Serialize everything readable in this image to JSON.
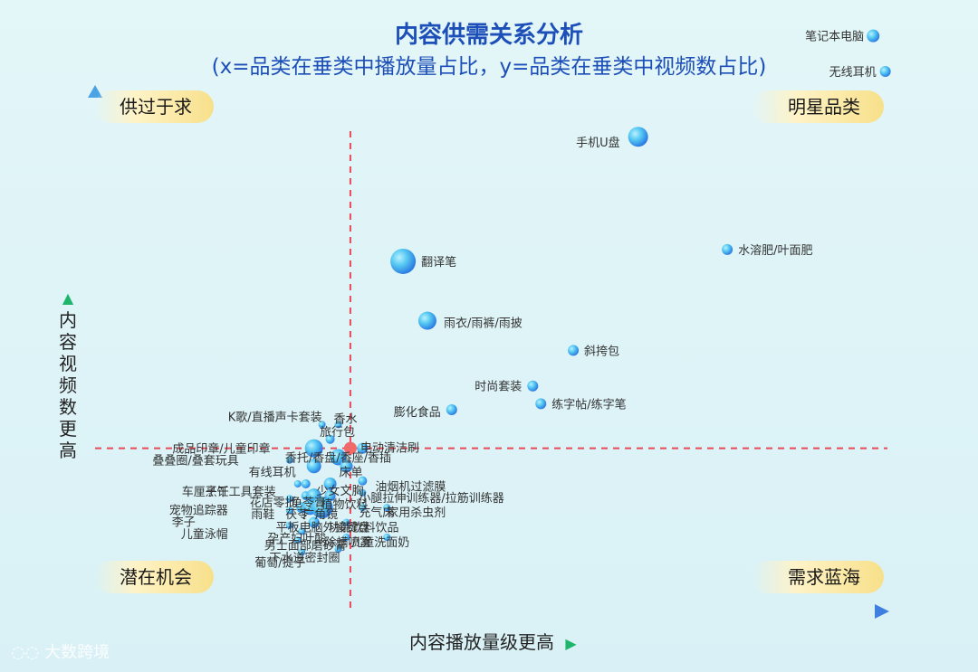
{
  "title": "内容供需关系分析",
  "subtitle": "(x=品类在垂类中播放量占比，y=品类在垂类中视频数占比)",
  "quadrants": {
    "top_left": "供过于求",
    "top_right": "明星品类",
    "bottom_left": "潜在机会",
    "bottom_right": "需求蓝海"
  },
  "axes": {
    "x_label": "内容播放量级更高",
    "y_label": "内容视频数更高",
    "x_arrow": "▶",
    "y_arrow": "▲"
  },
  "watermark": "大数跨境",
  "colors": {
    "bubble_dark": "#1e7fe0",
    "bubble_light": "#6fd8f5",
    "axis_blue": "#4aa3e6",
    "divider_red": "#e84a5a",
    "pill_yellow": "#f7e08a",
    "title_blue": "#1d4fb8",
    "center_marker": "#f06a6a"
  },
  "chart_data": {
    "type": "scatter",
    "grid": false,
    "legend": "none",
    "points": [
      {
        "label": "笔记本电脑",
        "x": 96,
        "y": 97,
        "size": 7
      },
      {
        "label": "无线耳机",
        "x": 97.5,
        "y": 91,
        "size": 6
      },
      {
        "label": "手机U盘",
        "x": 67,
        "y": 80,
        "size": 11
      },
      {
        "label": "水溶肥/叶面肥",
        "x": 78,
        "y": 61,
        "size": 6
      },
      {
        "label": "翻译笔",
        "x": 38,
        "y": 59,
        "size": 14
      },
      {
        "label": "雨衣/雨裤/雨披",
        "x": 41,
        "y": 49,
        "size": 10
      },
      {
        "label": "斜挎包",
        "x": 59,
        "y": 44,
        "size": 6
      },
      {
        "label": "时尚套装",
        "x": 54,
        "y": 38,
        "size": 6
      },
      {
        "label": "练字帖/练字笔",
        "x": 55,
        "y": 35,
        "size": 6
      },
      {
        "label": "膨化食品",
        "x": 44,
        "y": 34,
        "size": 6
      },
      {
        "label": "K歌/直播声卡套装",
        "x": 28,
        "y": 31.5,
        "size": 4
      },
      {
        "label": "香水",
        "x": 30,
        "y": 31.5,
        "size": 4
      },
      {
        "label": "旅行包",
        "x": 29,
        "y": 29,
        "size": 5
      },
      {
        "label": "成品印章/儿童印章",
        "x": 27,
        "y": 27.5,
        "size": 10
      },
      {
        "label": "电动清洁刷",
        "x": 33,
        "y": 27.5,
        "size": 6
      },
      {
        "label": "香托/香盘/香座/香插",
        "x": 30,
        "y": 26,
        "size": 9
      },
      {
        "label": "叠叠圈/叠套玩具",
        "x": 24,
        "y": 25.5,
        "size": 4
      },
      {
        "label": "有线耳机",
        "x": 27,
        "y": 24.5,
        "size": 8
      },
      {
        "label": "床单",
        "x": 31,
        "y": 24.5,
        "size": 7
      },
      {
        "label": "油烟机过滤膜",
        "x": 33,
        "y": 22,
        "size": 5
      },
      {
        "label": "车厘子干",
        "x": 25,
        "y": 21.5,
        "size": 4
      },
      {
        "label": "烹饪工具套装",
        "x": 26,
        "y": 21.5,
        "size": 5
      },
      {
        "label": "少女文胸",
        "x": 29,
        "y": 21.5,
        "size": 7
      },
      {
        "label": "花店零批",
        "x": 26,
        "y": 19.5,
        "size": 5
      },
      {
        "label": "龟苓膏",
        "x": 27,
        "y": 19.5,
        "size": 8
      },
      {
        "label": "植物饮料",
        "x": 29,
        "y": 19.5,
        "size": 6
      },
      {
        "label": "小腿拉伸训练器/拉筋训练器",
        "x": 33,
        "y": 20,
        "size": 4
      },
      {
        "label": "宠物追踪器",
        "x": 24,
        "y": 19,
        "size": 4
      },
      {
        "label": "李子",
        "x": 24,
        "y": 17,
        "size": 4
      },
      {
        "label": "雨鞋",
        "x": 25.5,
        "y": 17.5,
        "size": 6
      },
      {
        "label": "茯苓",
        "x": 26.5,
        "y": 17.5,
        "size": 8
      },
      {
        "label": "广角镜",
        "x": 28,
        "y": 17.5,
        "size": 12
      },
      {
        "label": "充气床",
        "x": 33,
        "y": 17.5,
        "size": 4
      },
      {
        "label": "家用杀虫剂",
        "x": 36,
        "y": 17.5,
        "size": 4
      },
      {
        "label": "儿童泳帽",
        "x": 24,
        "y": 14.5,
        "size": 4
      },
      {
        "label": "平板电脑外接键盘",
        "x": 27,
        "y": 15,
        "size": 6
      },
      {
        "label": "功能饮料饮品",
        "x": 31,
        "y": 15,
        "size": 4
      },
      {
        "label": "孕产妇叶酸",
        "x": 25.5,
        "y": 13.5,
        "size": 4
      },
      {
        "label": "除螨喷雾",
        "x": 31,
        "y": 12.5,
        "size": 4
      },
      {
        "label": "儿童洗面奶",
        "x": 36,
        "y": 12.5,
        "size": 4
      },
      {
        "label": "男士面部磨砂膏",
        "x": 25,
        "y": 12,
        "size": 4
      },
      {
        "label": "葡萄/提子",
        "x": 25.5,
        "y": 10,
        "size": 4
      },
      {
        "label": "下水道密封圈",
        "x": 30,
        "y": 10.5,
        "size": 4
      }
    ],
    "x_divider": 31.5,
    "y_divider": 27.5,
    "xlim": [
      0,
      100
    ],
    "ylim": [
      0,
      100
    ]
  }
}
